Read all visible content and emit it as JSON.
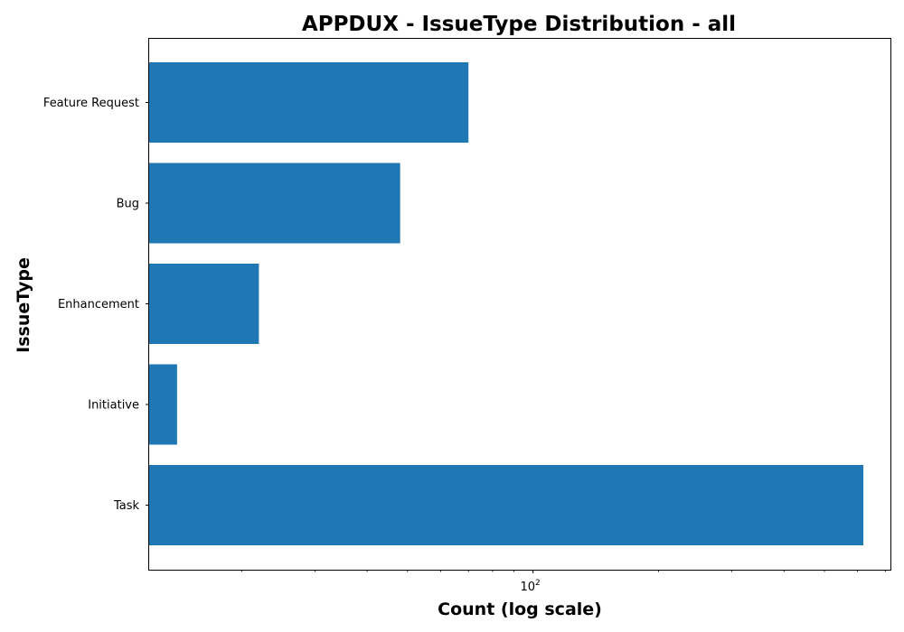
{
  "chart_data": {
    "type": "bar",
    "orientation": "horizontal",
    "title": "APPDUX - IssueType Distribution - all",
    "xlabel": "Count (log scale)",
    "ylabel": "IssueType",
    "x_scale": "log",
    "xlim": [
      12,
      720
    ],
    "x_ticks": [
      {
        "base": "10",
        "exp": "2",
        "value": 100
      }
    ],
    "categories": [
      "Feature Request",
      "Bug",
      "Enhancement",
      "Initiative",
      "Task"
    ],
    "values": [
      70,
      48,
      22,
      14,
      620
    ],
    "bar_color": "#1f77b4",
    "grid": false,
    "legend": "none"
  }
}
